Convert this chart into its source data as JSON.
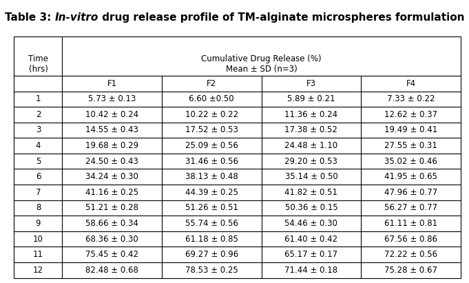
{
  "title_normal": "Table 3: ",
  "title_italic": "In-vitro",
  "title_rest": " drug release profile of TM-alginate microspheres formulation",
  "col_header_main": "Cumulative Drug Release (%)",
  "col_header_sub": "Mean ± SD (n=3)",
  "col_headers": [
    "F1",
    "F2",
    "F3",
    "F4"
  ],
  "row_header": "Time\n(hrs)",
  "time_rows": [
    "1",
    "2",
    "3",
    "4",
    "5",
    "6",
    "7",
    "8",
    "9",
    "10",
    "11",
    "12"
  ],
  "data": [
    [
      "5.73 ± 0.13",
      "6.60 ±0.50",
      "5.89 ± 0.21",
      "7.33 ± 0.22"
    ],
    [
      "10.42 ± 0.24",
      "10.22 ± 0.22",
      "11.36 ± 0.24",
      "12.62 ± 0.37"
    ],
    [
      "14.55 ± 0.43",
      "17.52 ± 0.53",
      "17.38 ± 0.52",
      "19.49 ± 0.41"
    ],
    [
      "19.68 ± 0.29",
      "25.09 ± 0.56",
      "24.48 ± 1.10",
      "27.55 ± 0.31"
    ],
    [
      "24.50 ± 0.43",
      "31.46 ± 0.56",
      "29.20 ± 0.53",
      "35.02 ± 0.46"
    ],
    [
      "34.24 ± 0.30",
      "38.13 ± 0.48",
      "35.14 ± 0.50",
      "41.95 ± 0.65"
    ],
    [
      "41.16 ± 0.25",
      "44.39 ± 0.25",
      "41.82 ± 0.51",
      "47.96 ± 0.77"
    ],
    [
      "51.21 ± 0.28",
      "51.26 ± 0.51",
      "50.36 ± 0.15",
      "56.27 ± 0.77"
    ],
    [
      "58.66 ± 0.34",
      "55.74 ± 0.56",
      "54.46 ± 0.30",
      "61.11 ± 0.81"
    ],
    [
      "68.36 ± 0.30",
      "61.18 ± 0.85",
      "61.40 ± 0.42",
      "67.56 ± 0.86"
    ],
    [
      "75.45 ± 0.42",
      "69.27 ± 0.96",
      "65.17 ± 0.17",
      "72.22 ± 0.56"
    ],
    [
      "82.48 ± 0.68",
      "78.53 ± 0.25",
      "71.44 ± 0.18",
      "75.28 ± 0.67"
    ]
  ],
  "bg_color": "#ffffff",
  "text_color": "#000000",
  "border_color": "#000000",
  "cell_font_size": 8.5,
  "title_font_size": 11.0,
  "header_font_size": 8.5
}
